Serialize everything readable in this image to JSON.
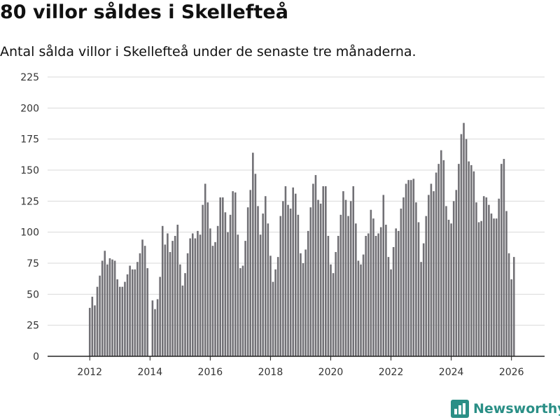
{
  "title": "80 villor såldes i Skellefteå",
  "subtitle": "Antal sålda villor i Skellefteå under de senaste tre månaderna.",
  "brand": "Newsworthy",
  "colors": {
    "bar": "#717075",
    "highlight": "#22968c",
    "grid": "#d9d9d9",
    "axis": "#222222",
    "brand": "#2a8f86"
  },
  "chart_data": {
    "type": "bar",
    "title": "80 villor såldes i Skellefteå",
    "xlabel": "",
    "ylabel": "",
    "ylim": [
      0,
      225
    ],
    "yticks": [
      0,
      25,
      50,
      75,
      100,
      125,
      150,
      175,
      200,
      225
    ],
    "xticks": [
      {
        "label": "2012",
        "x": 2012.0
      },
      {
        "label": "2014",
        "x": 2014.0
      },
      {
        "label": "2016",
        "x": 2016.0
      },
      {
        "label": "2018",
        "x": 2018.0
      },
      {
        "label": "2020",
        "x": 2020.0
      },
      {
        "label": "2022",
        "x": 2022.0
      },
      {
        "label": "2024",
        "x": 2024.0
      },
      {
        "label": "2026",
        "x": 2026.0
      }
    ],
    "xlim": [
      2010.6,
      2027.1
    ],
    "start": 2012.0,
    "period": 0.0833333,
    "values": [
      39,
      48,
      41,
      56,
      65,
      77,
      85,
      74,
      79,
      78,
      77,
      62,
      56,
      56,
      60,
      66,
      73,
      70,
      70,
      76,
      83,
      94,
      89,
      71,
      null,
      45,
      38,
      46,
      64,
      105,
      90,
      99,
      84,
      93,
      97,
      106,
      74,
      57,
      67,
      83,
      95,
      99,
      95,
      101,
      98,
      122,
      139,
      124,
      103,
      89,
      92,
      105,
      128,
      128,
      116,
      100,
      114,
      133,
      132,
      98,
      71,
      73,
      93,
      120,
      134,
      164,
      147,
      121,
      98,
      115,
      129,
      107,
      81,
      60,
      70,
      80,
      113,
      125,
      137,
      122,
      119,
      136,
      131,
      114,
      83,
      75,
      86,
      101,
      120,
      139,
      146,
      126,
      123,
      137,
      137,
      97,
      74,
      67,
      84,
      97,
      114,
      133,
      126,
      113,
      125,
      137,
      107,
      77,
      74,
      82,
      97,
      99,
      118,
      111,
      97,
      99,
      104,
      130,
      106,
      80,
      70,
      88,
      103,
      101,
      119,
      128,
      139,
      142,
      142,
      143,
      124,
      108,
      76,
      91,
      113,
      130,
      139,
      133,
      148,
      155,
      166,
      158,
      121,
      110,
      107,
      125,
      134,
      155,
      179,
      188,
      175,
      157,
      154,
      149,
      124,
      108,
      109,
      129,
      128,
      122,
      115,
      111,
      111,
      127,
      155,
      159,
      117,
      83,
      62,
      80
    ],
    "highlight_index": 170,
    "annotation": "80"
  }
}
